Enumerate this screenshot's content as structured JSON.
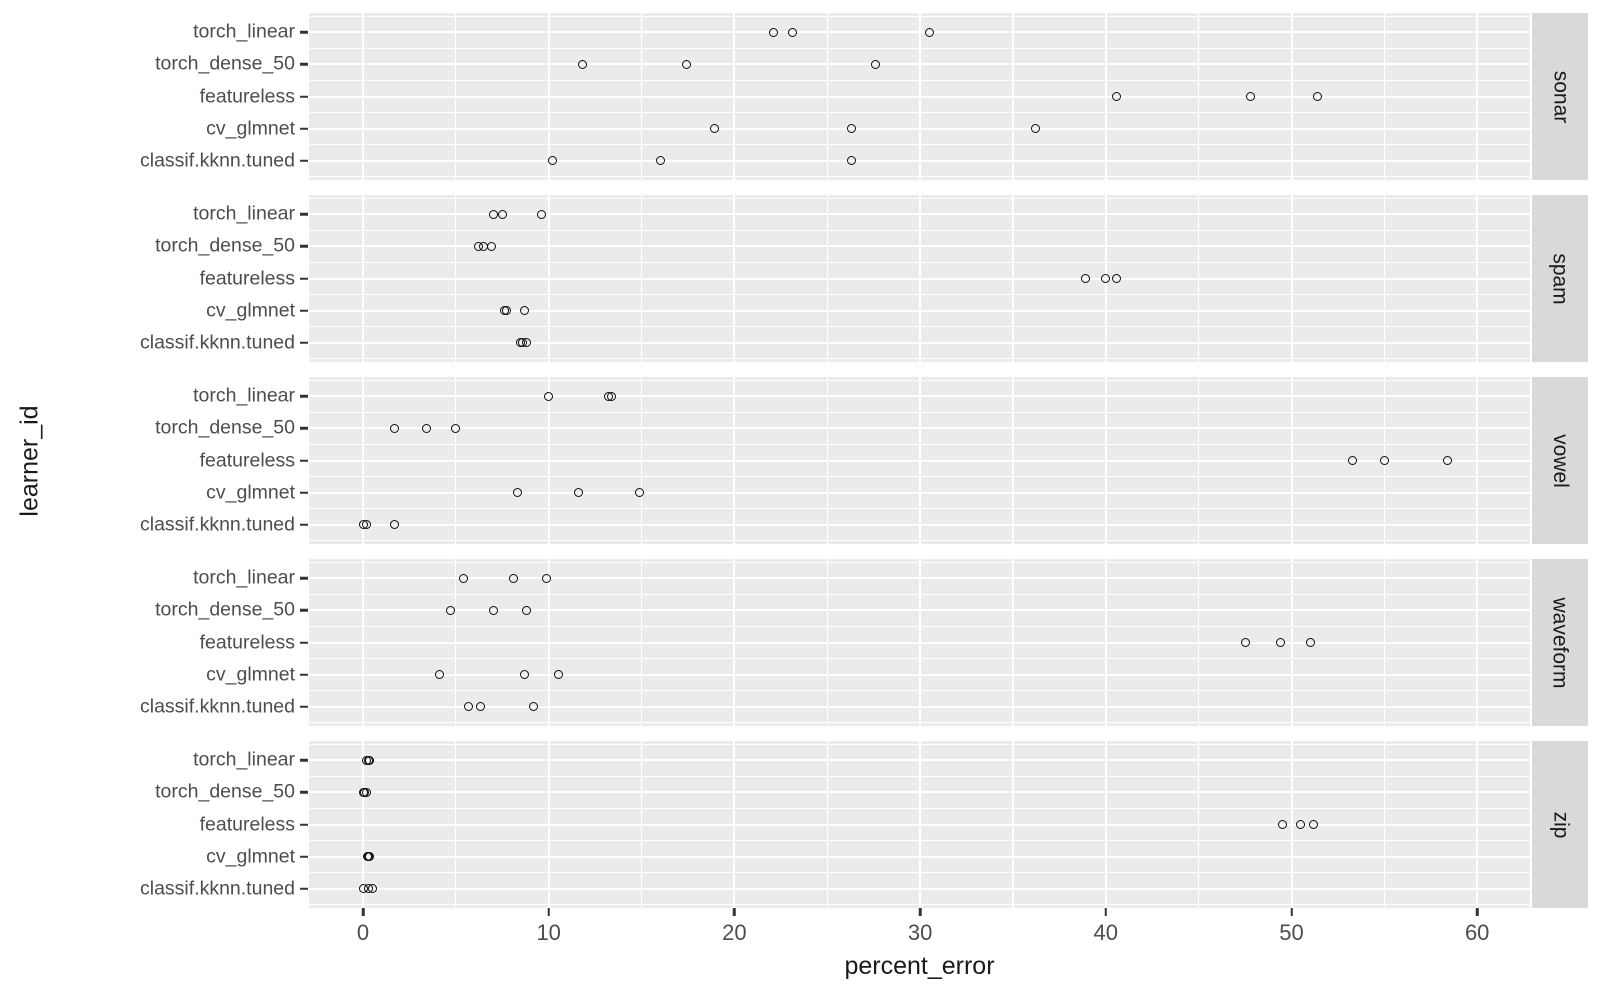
{
  "titles": {
    "x_axis": "percent_error",
    "y_axis": "learner_id"
  },
  "colors": {
    "panel_background": "#EBEBEB",
    "strip_background": "#D9D9D9",
    "gridline": "#FFFFFF",
    "axis_text": "#4D4D4D",
    "title_text": "#1A1A1A",
    "point_stroke": "#0D0D0D"
  },
  "chart_data": {
    "type": "scatter",
    "subtype": "horizontal-faceted-dotplot",
    "title": "",
    "xlabel": "percent_error",
    "ylabel": "learner_id",
    "legend_position": "none",
    "grid": "white major and minor gridlines on grey panels",
    "point_style": "open black circles",
    "x_major_ticks": [
      0,
      10,
      20,
      30,
      40,
      50,
      60
    ],
    "x_minor_gridlines": [
      5,
      15,
      25,
      35,
      45,
      55
    ],
    "xlim": [
      -3.1,
      62.8
    ],
    "categories": [
      "torch_linear",
      "torch_dense_50",
      "featureless",
      "cv_glmnet",
      "classif.kknn.tuned"
    ],
    "facet_variable": "task",
    "facets": [
      {
        "name": "sonar",
        "series": [
          {
            "name": "torch_linear",
            "values": [
              22.1,
              23.1,
              30.5
            ]
          },
          {
            "name": "torch_dense_50",
            "values": [
              11.8,
              17.4,
              27.6
            ]
          },
          {
            "name": "featureless",
            "values": [
              40.6,
              47.8,
              51.4
            ]
          },
          {
            "name": "cv_glmnet",
            "values": [
              18.9,
              26.3,
              36.2
            ]
          },
          {
            "name": "classif.kknn.tuned",
            "values": [
              10.2,
              16.0,
              26.3
            ]
          }
        ]
      },
      {
        "name": "spam",
        "series": [
          {
            "name": "torch_linear",
            "values": [
              7.0,
              7.5,
              9.6
            ]
          },
          {
            "name": "torch_dense_50",
            "values": [
              6.2,
              6.5,
              6.9
            ]
          },
          {
            "name": "featureless",
            "values": [
              38.9,
              40.0,
              40.6
            ]
          },
          {
            "name": "cv_glmnet",
            "values": [
              7.6,
              7.7,
              8.7
            ]
          },
          {
            "name": "classif.kknn.tuned",
            "values": [
              8.5,
              8.6,
              8.8
            ]
          }
        ]
      },
      {
        "name": "vowel",
        "series": [
          {
            "name": "torch_linear",
            "values": [
              10.0,
              13.2,
              13.4
            ]
          },
          {
            "name": "torch_dense_50",
            "values": [
              1.7,
              3.4,
              5.0
            ]
          },
          {
            "name": "featureless",
            "values": [
              53.3,
              55.0,
              58.4
            ]
          },
          {
            "name": "cv_glmnet",
            "values": [
              8.3,
              11.6,
              14.9
            ]
          },
          {
            "name": "classif.kknn.tuned",
            "values": [
              0.0,
              0.2,
              1.7
            ]
          }
        ]
      },
      {
        "name": "waveform",
        "series": [
          {
            "name": "torch_linear",
            "values": [
              5.4,
              8.1,
              9.9
            ]
          },
          {
            "name": "torch_dense_50",
            "values": [
              4.7,
              7.0,
              8.8
            ]
          },
          {
            "name": "featureless",
            "values": [
              47.5,
              49.4,
              51.0
            ]
          },
          {
            "name": "cv_glmnet",
            "values": [
              4.1,
              8.7,
              10.5
            ]
          },
          {
            "name": "classif.kknn.tuned",
            "values": [
              5.7,
              6.3,
              9.2
            ]
          }
        ]
      },
      {
        "name": "zip",
        "series": [
          {
            "name": "torch_linear",
            "values": [
              0.2,
              0.3,
              0.35
            ]
          },
          {
            "name": "torch_dense_50",
            "values": [
              0.0,
              0.1,
              0.2
            ]
          },
          {
            "name": "featureless",
            "values": [
              49.5,
              50.5,
              51.2
            ]
          },
          {
            "name": "cv_glmnet",
            "values": [
              0.25,
              0.3,
              0.35
            ]
          },
          {
            "name": "classif.kknn.tuned",
            "values": [
              0.0,
              0.3,
              0.5
            ]
          }
        ]
      }
    ]
  }
}
